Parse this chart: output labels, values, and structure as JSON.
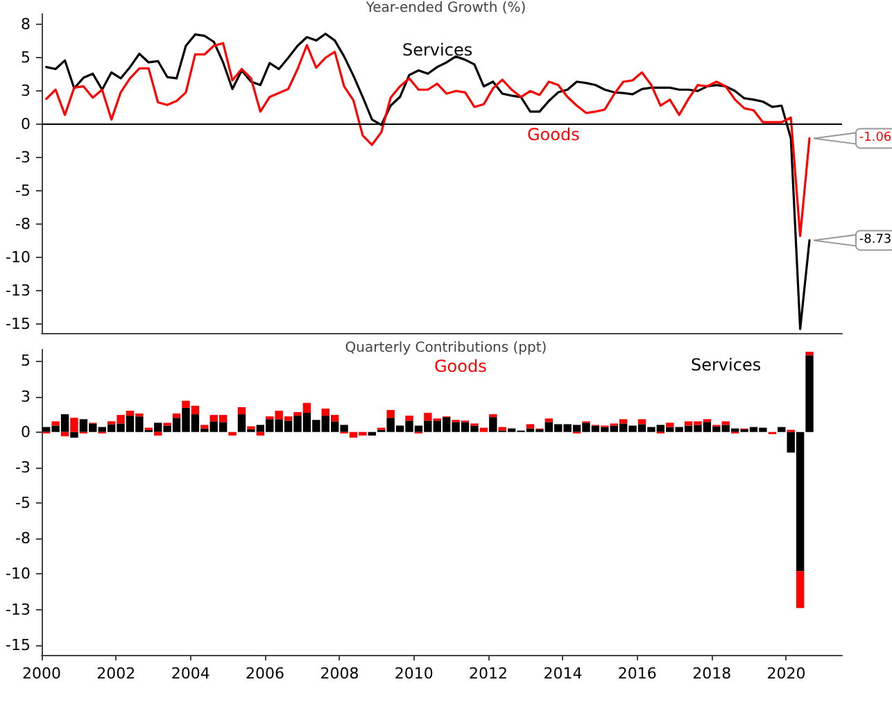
{
  "chart_data": [
    {
      "type": "line",
      "title": "Year-ended Growth (%)",
      "tick_labels": "y",
      "marker": "none",
      "x": [
        2000.125,
        2000.375,
        2000.625,
        2000.875,
        2001.125,
        2001.375,
        2001.625,
        2001.875,
        2002.125,
        2002.375,
        2002.625,
        2002.875,
        2003.125,
        2003.375,
        2003.625,
        2003.875,
        2004.125,
        2004.375,
        2004.625,
        2004.875,
        2005.125,
        2005.375,
        2005.625,
        2005.875,
        2006.125,
        2006.375,
        2006.625,
        2006.875,
        2007.125,
        2007.375,
        2007.625,
        2007.875,
        2008.125,
        2008.375,
        2008.625,
        2008.875,
        2009.125,
        2009.375,
        2009.625,
        2009.875,
        2010.125,
        2010.375,
        2010.625,
        2010.875,
        2011.125,
        2011.375,
        2011.625,
        2011.875,
        2012.125,
        2012.375,
        2012.625,
        2012.875,
        2013.125,
        2013.375,
        2013.625,
        2013.875,
        2014.125,
        2014.375,
        2014.625,
        2014.875,
        2015.125,
        2015.375,
        2015.625,
        2015.875,
        2016.125,
        2016.375,
        2016.625,
        2016.875,
        2017.125,
        2017.375,
        2017.625,
        2017.875,
        2018.125,
        2018.375,
        2018.625,
        2018.875,
        2019.125,
        2019.375,
        2019.625,
        2019.875,
        2020.125,
        2020.375,
        2020.625
      ],
      "xlim": [
        2000,
        2021.5
      ],
      "xticks": [
        2000,
        2002,
        2004,
        2006,
        2008,
        2010,
        2012,
        2014,
        2016,
        2018,
        2020
      ],
      "ylim": [
        -15.7,
        8.3
      ],
      "yticks": [
        {
          "value": 7.5,
          "label": "8"
        },
        5,
        {
          "value": 2.5,
          "label": "3"
        },
        0,
        {
          "value": -2.5,
          "label": "-3"
        },
        -5,
        {
          "value": -7.5,
          "label": "-8"
        },
        -10,
        {
          "value": -12.5,
          "label": "-13"
        },
        -15
      ],
      "ref_lines": [
        {
          "axis": "y",
          "value": 0,
          "color": "#000000"
        }
      ],
      "annotations": [
        {
          "text": "-1.06",
          "x": 2020.625,
          "y": -1.06
        },
        {
          "text": "-8.73",
          "x": 2020.625,
          "y": -8.73
        }
      ],
      "series": [
        {
          "name": "Services",
          "color": "#000000",
          "values": [
            4.3,
            4.15,
            4.8,
            2.7,
            3.5,
            3.8,
            2.6,
            3.9,
            3.45,
            4.3,
            5.3,
            4.65,
            4.75,
            3.55,
            3.45,
            5.9,
            6.75,
            6.65,
            6.2,
            4.65,
            2.65,
            4.05,
            3.2,
            2.95,
            4.6,
            4.15,
            5.0,
            5.9,
            6.55,
            6.3,
            6.8,
            6.3,
            5.1,
            3.65,
            2.05,
            0.35,
            -0.05,
            1.4,
            2.05,
            3.7,
            4.05,
            3.8,
            4.3,
            4.65,
            5.1,
            4.85,
            4.5,
            2.85,
            3.2,
            2.3,
            2.15,
            2.05,
            0.95,
            0.95,
            1.75,
            2.4,
            2.6,
            3.2,
            3.1,
            2.95,
            2.6,
            2.4,
            2.35,
            2.25,
            2.65,
            2.75,
            2.75,
            2.75,
            2.6,
            2.6,
            2.5,
            2.85,
            2.95,
            2.85,
            2.5,
            1.95,
            1.85,
            1.7,
            1.3,
            1.4,
            -1.05,
            -15.4,
            -8.73
          ]
        },
        {
          "name": "Goods",
          "color": "#ff0000",
          "values": [
            1.9,
            2.6,
            0.7,
            2.75,
            2.85,
            2.0,
            2.6,
            0.35,
            2.4,
            3.45,
            4.2,
            4.2,
            1.65,
            1.45,
            1.75,
            2.4,
            5.25,
            5.25,
            5.9,
            6.1,
            3.3,
            4.15,
            3.45,
            0.95,
            2.05,
            2.35,
            2.65,
            4.15,
            5.95,
            4.25,
            5.0,
            5.45,
            2.85,
            1.8,
            -0.85,
            -1.55,
            -0.6,
            2.0,
            2.85,
            3.45,
            2.6,
            2.6,
            3.05,
            2.3,
            2.5,
            2.4,
            1.3,
            1.5,
            2.7,
            3.35,
            2.6,
            2.05,
            2.5,
            2.2,
            3.2,
            2.95,
            2.05,
            1.4,
            0.85,
            0.95,
            1.1,
            2.25,
            3.2,
            3.3,
            3.9,
            2.95,
            1.4,
            1.85,
            0.7,
            1.9,
            2.95,
            2.85,
            3.2,
            2.85,
            1.85,
            1.2,
            1.05,
            0.15,
            0.15,
            0.15,
            0.5,
            -8.4,
            -1.06
          ]
        }
      ]
    },
    {
      "type": "bar",
      "title": "Quarterly Contributions (ppt)",
      "stacked": true,
      "x": [
        2000.125,
        2000.375,
        2000.625,
        2000.875,
        2001.125,
        2001.375,
        2001.625,
        2001.875,
        2002.125,
        2002.375,
        2002.625,
        2002.875,
        2003.125,
        2003.375,
        2003.625,
        2003.875,
        2004.125,
        2004.375,
        2004.625,
        2004.875,
        2005.125,
        2005.375,
        2005.625,
        2005.875,
        2006.125,
        2006.375,
        2006.625,
        2006.875,
        2007.125,
        2007.375,
        2007.625,
        2007.875,
        2008.125,
        2008.375,
        2008.625,
        2008.875,
        2009.125,
        2009.375,
        2009.625,
        2009.875,
        2010.125,
        2010.375,
        2010.625,
        2010.875,
        2011.125,
        2011.375,
        2011.625,
        2011.875,
        2012.125,
        2012.375,
        2012.625,
        2012.875,
        2013.125,
        2013.375,
        2013.625,
        2013.875,
        2014.125,
        2014.375,
        2014.625,
        2014.875,
        2015.125,
        2015.375,
        2015.625,
        2015.875,
        2016.125,
        2016.375,
        2016.625,
        2016.875,
        2017.125,
        2017.375,
        2017.625,
        2017.875,
        2018.125,
        2018.375,
        2018.625,
        2018.875,
        2019.125,
        2019.375,
        2019.625,
        2019.875,
        2020.125,
        2020.375,
        2020.625
      ],
      "xlim": [
        2000,
        2021.5
      ],
      "xticks": [
        2000,
        2002,
        2004,
        2006,
        2008,
        2010,
        2012,
        2014,
        2016,
        2018,
        2020
      ],
      "ylim": [
        -15.7,
        5.8
      ],
      "yticks": [
        5,
        {
          "value": 2.5,
          "label": "3"
        },
        0,
        {
          "value": -2.5,
          "label": "-3"
        },
        -5,
        {
          "value": -7.5,
          "label": "-8"
        },
        -10,
        {
          "value": -12.5,
          "label": "-13"
        },
        -15
      ],
      "series": [
        {
          "name": "Services",
          "color": "#000000",
          "values": [
            0.35,
            0.45,
            1.25,
            -0.4,
            0.9,
            0.6,
            0.35,
            0.55,
            0.6,
            1.15,
            1.1,
            0.15,
            0.65,
            0.45,
            1.0,
            1.7,
            1.25,
            0.25,
            0.75,
            0.7,
            0,
            1.25,
            0.2,
            0.5,
            0.9,
            0.9,
            0.8,
            1.15,
            1.35,
            0.85,
            1.15,
            0.75,
            0.5,
            0,
            0,
            -0.25,
            0.15,
            1.0,
            0.45,
            0.8,
            0.45,
            0.8,
            0.8,
            1.05,
            0.7,
            0.7,
            0.45,
            0,
            1.05,
            0.1,
            0.25,
            0.1,
            0.25,
            0.2,
            0.7,
            0.55,
            0.55,
            0.5,
            0.65,
            0.45,
            0.35,
            0.45,
            0.6,
            0.45,
            0.55,
            0.35,
            0.5,
            0.35,
            0.35,
            0.45,
            0.5,
            0.7,
            0.4,
            0.5,
            0.25,
            0.2,
            0.35,
            0.3,
            null,
            0.35,
            -1.45,
            -9.8,
            5.4
          ]
        },
        {
          "name": "Goods",
          "color": "#ff0000",
          "values": [
            -0.1,
            0.3,
            -0.3,
            1.0,
            -0.1,
            0.05,
            -0.1,
            0.2,
            0.6,
            0.35,
            0.2,
            0.15,
            -0.25,
            0.2,
            0.3,
            0.5,
            0.6,
            0.25,
            0.45,
            0.5,
            -0.25,
            0.5,
            0.2,
            -0.25,
            0.2,
            0.6,
            0.3,
            0.25,
            0.7,
            0,
            0.5,
            0.45,
            -0.1,
            -0.4,
            -0.25,
            0,
            0.15,
            0.55,
            0,
            0.35,
            -0.1,
            0.55,
            0.15,
            0.05,
            0.15,
            0.1,
            0.15,
            0.3,
            0.2,
            0.25,
            0,
            0,
            0.3,
            0.05,
            0.25,
            0,
            0,
            -0.1,
            0.1,
            0.05,
            0.1,
            0.15,
            0.3,
            0,
            0.35,
            0,
            -0.1,
            0.3,
            0,
            0.3,
            0.25,
            0.2,
            0.1,
            0.25,
            -0.1,
            0.05,
            0,
            0,
            -0.15,
            0,
            0.15,
            -2.6,
            0.25
          ]
        }
      ]
    }
  ]
}
